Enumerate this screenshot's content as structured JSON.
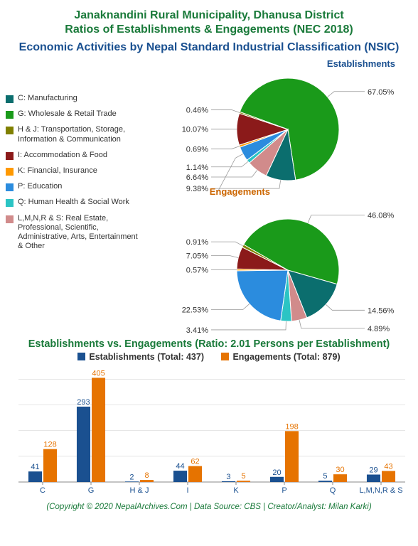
{
  "header": {
    "title_line1": "Janaknandini Rural Municipality, Dhanusa District",
    "title_line2": "Ratios of Establishments & Engagements (NEC 2018)",
    "subtitle": "Economic Activities by Nepal Standard Industrial Classification (NSIC)",
    "title_fontsize": 16,
    "subtitle_fontsize": 13,
    "title_color": "#1a7a3a",
    "subtitle_color": "#1a5090"
  },
  "categories": [
    {
      "code": "C",
      "label": "C: Manufacturing",
      "color": "#0b6e6e"
    },
    {
      "code": "G",
      "label": "G: Wholesale & Retail Trade",
      "color": "#1a9a1a"
    },
    {
      "code": "H & J",
      "label": "H & J: Transportation, Storage, Information & Communication",
      "color": "#808000"
    },
    {
      "code": "I",
      "label": "I: Accommodation & Food",
      "color": "#8b1a1a"
    },
    {
      "code": "K",
      "label": "K: Financial, Insurance",
      "color": "#ff9900"
    },
    {
      "code": "P",
      "label": "P: Education",
      "color": "#2b8cde"
    },
    {
      "code": "Q",
      "label": "Q: Human Health & Social Work",
      "color": "#2bc4c4"
    },
    {
      "code": "L,M,N,R & S",
      "label": "L,M,N,R & S: Real Estate, Professional, Scientific, Administrative, Arts, Entertainment & Other",
      "color": "#d18b8b"
    }
  ],
  "pie_establishments": {
    "title": "Establishments",
    "title_color": "#1a5090",
    "slices": [
      {
        "code": "G",
        "pct": 67.05,
        "color": "#1a9a1a"
      },
      {
        "code": "C",
        "pct": 9.38,
        "color": "#0b6e6e"
      },
      {
        "code": "L,M,N,R & S",
        "pct": 6.64,
        "color": "#d18b8b"
      },
      {
        "code": "Q",
        "pct": 1.14,
        "color": "#2bc4c4"
      },
      {
        "code": "P",
        "pct": 4.58,
        "color": "#2b8cde"
      },
      {
        "code": "K",
        "pct": 0.69,
        "color": "#ff9900"
      },
      {
        "code": "I",
        "pct": 10.07,
        "color": "#8b1a1a"
      },
      {
        "code": "H & J",
        "pct": 0.46,
        "color": "#808000"
      }
    ]
  },
  "pie_engagements": {
    "title": "Engagements",
    "title_color": "#cc6600",
    "slices": [
      {
        "code": "G",
        "pct": 46.08,
        "color": "#1a9a1a"
      },
      {
        "code": "C",
        "pct": 14.56,
        "color": "#0b6e6e"
      },
      {
        "code": "L,M,N,R & S",
        "pct": 4.89,
        "color": "#d18b8b"
      },
      {
        "code": "Q",
        "pct": 3.41,
        "color": "#2bc4c4"
      },
      {
        "code": "P",
        "pct": 22.53,
        "color": "#2b8cde"
      },
      {
        "code": "K",
        "pct": 0.57,
        "color": "#ff9900"
      },
      {
        "code": "I",
        "pct": 7.05,
        "color": "#8b1a1a"
      },
      {
        "code": "H & J",
        "pct": 0.91,
        "color": "#808000"
      }
    ]
  },
  "bar_chart": {
    "section_title": "Establishments vs. Engagements (Ratio: 2.01 Persons per Establishment)",
    "series": [
      {
        "name": "Establishments",
        "total": 437,
        "color": "#1a5090",
        "label": "Establishments (Total: 437)"
      },
      {
        "name": "Engagements",
        "total": 879,
        "color": "#e67300",
        "label": "Engagements (Total: 879)"
      }
    ],
    "categories": [
      "C",
      "G",
      "H & J",
      "I",
      "K",
      "P",
      "Q",
      "L,M,N,R & S"
    ],
    "establishments": [
      41,
      293,
      2,
      44,
      3,
      20,
      5,
      29
    ],
    "engagements": [
      128,
      405,
      8,
      62,
      5,
      198,
      30,
      43
    ],
    "ylim_max": 420,
    "grid_color": "#cccccc",
    "axis_color": "#888888",
    "label_color": "#1a5090",
    "value_fontsize": 11
  },
  "footer": {
    "copyright": "(Copyright © 2020 NepalArchives.Com | Data Source: CBS | Creator/Analyst: Milan Karki)"
  }
}
